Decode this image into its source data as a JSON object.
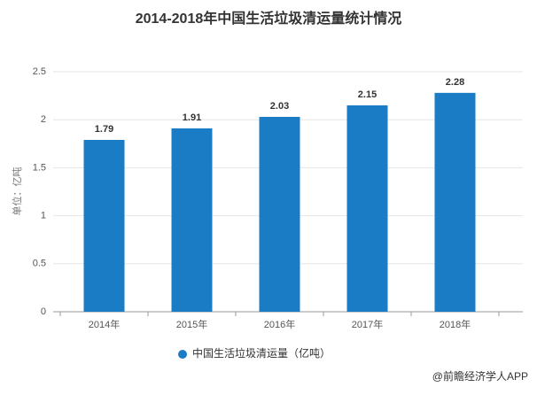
{
  "chart_data": {
    "type": "bar",
    "title": "2014-2018年中国生活垃圾清运量统计情况",
    "y_label": "单位：亿吨",
    "categories": [
      "2014年",
      "2015年",
      "2016年",
      "2017年",
      "2018年"
    ],
    "series": [
      {
        "name": "中国生活垃圾清运量（亿吨）",
        "color": "#1b7cc6",
        "values": [
          1.79,
          1.91,
          2.03,
          2.15,
          2.28
        ]
      }
    ],
    "ylim": [
      0,
      2.5
    ],
    "yticks": [
      0,
      0.5,
      1,
      1.5,
      2,
      2.5
    ],
    "grid": true,
    "source": "@前瞻经济学人APP"
  }
}
